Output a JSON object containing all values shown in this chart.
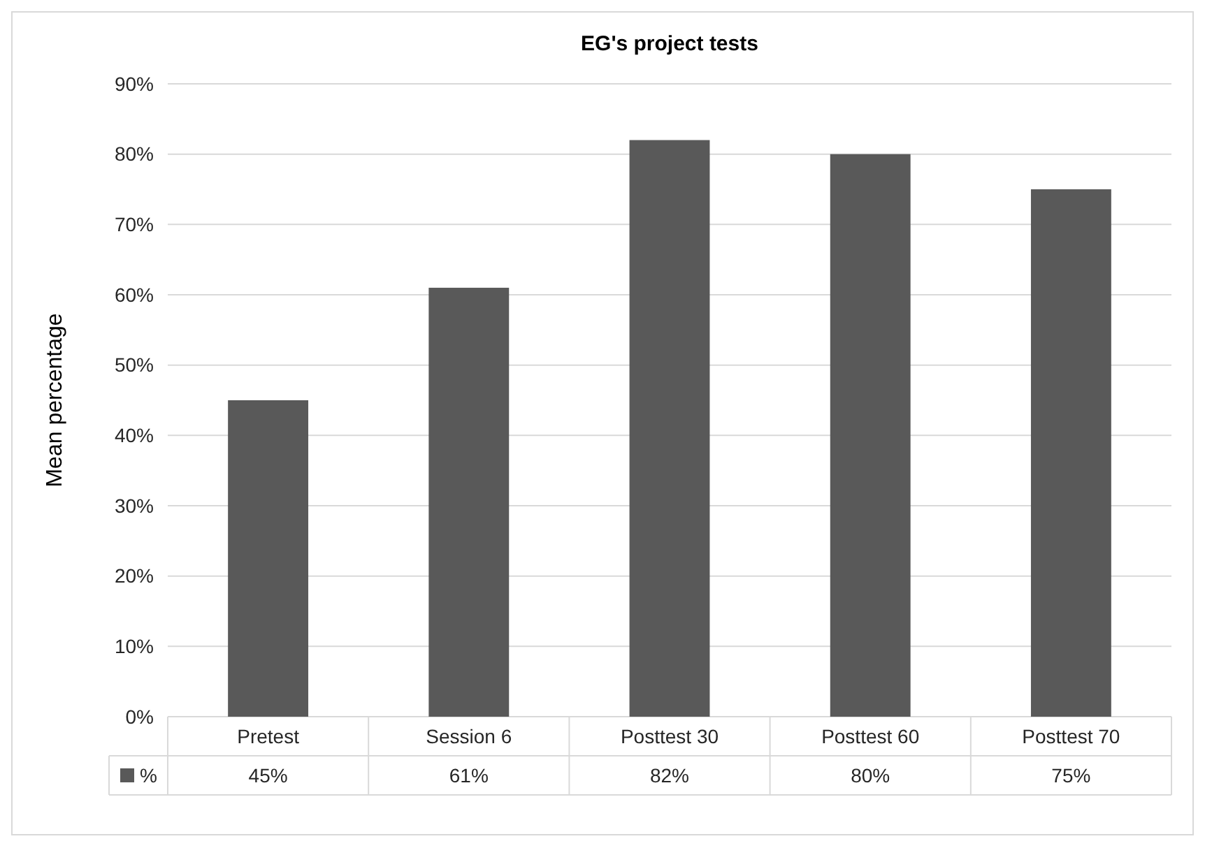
{
  "chart_data": {
    "type": "bar",
    "title": "EG's project tests",
    "ylabel": "Mean percentage",
    "categories": [
      "Pretest",
      "Session 6",
      "Posttest 30",
      "Posttest 60",
      "Posttest 70"
    ],
    "series": [
      {
        "name": "%",
        "color": "#595959",
        "values": [
          45,
          61,
          82,
          80,
          75
        ],
        "value_labels": [
          "45%",
          "61%",
          "82%",
          "80%",
          "75%"
        ]
      }
    ],
    "ylim": [
      0,
      90
    ],
    "yticks": [
      {
        "value": 0,
        "label": "0%"
      },
      {
        "value": 10,
        "label": "10%"
      },
      {
        "value": 20,
        "label": "20%"
      },
      {
        "value": 30,
        "label": "30%"
      },
      {
        "value": 40,
        "label": "40%"
      },
      {
        "value": 50,
        "label": "50%"
      },
      {
        "value": 60,
        "label": "60%"
      },
      {
        "value": 70,
        "label": "70%"
      },
      {
        "value": 80,
        "label": "80%"
      },
      {
        "value": 90,
        "label": "90%"
      }
    ],
    "grid": "y",
    "legend": "bottom"
  }
}
